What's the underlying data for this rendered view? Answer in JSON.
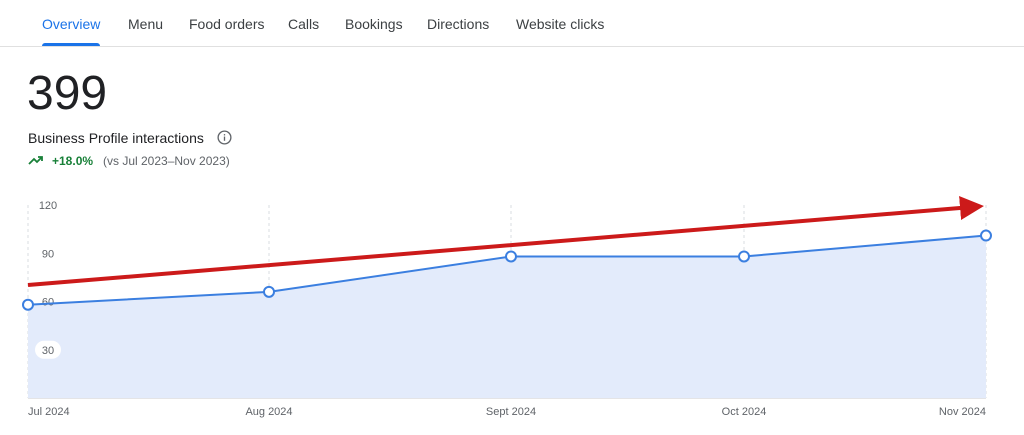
{
  "tabs": [
    {
      "label": "Overview",
      "active": true
    },
    {
      "label": "Menu",
      "active": false
    },
    {
      "label": "Food orders",
      "active": false
    },
    {
      "label": "Calls",
      "active": false
    },
    {
      "label": "Bookings",
      "active": false
    },
    {
      "label": "Directions",
      "active": false
    },
    {
      "label": "Website clicks",
      "active": false
    }
  ],
  "summary": {
    "total": "399",
    "label": "Business Profile interactions",
    "change": "+18.0%",
    "comparison": "(vs Jul 2023–Nov 2023)",
    "change_color": "#188038"
  },
  "colors": {
    "accent": "#1a73e8",
    "line": "#3b7fe0",
    "area_fill": "#e3ebfb",
    "annotation_arrow": "#cc1a1a"
  },
  "icons": {
    "info": "info-icon",
    "trend": "trending-up-icon"
  },
  "chart_data": {
    "type": "area",
    "x": [
      "Jul 2024",
      "Aug 2024",
      "Sept 2024",
      "Oct 2024",
      "Nov 2024"
    ],
    "series": [
      {
        "values": [
          58,
          66,
          88,
          88,
          101
        ]
      }
    ],
    "yticks": [
      120,
      90,
      60,
      30
    ],
    "ylim": [
      0,
      120
    ],
    "grid": "vertical dashed lines at each month",
    "annotation": "red upward trend arrow drawn across the chart"
  }
}
